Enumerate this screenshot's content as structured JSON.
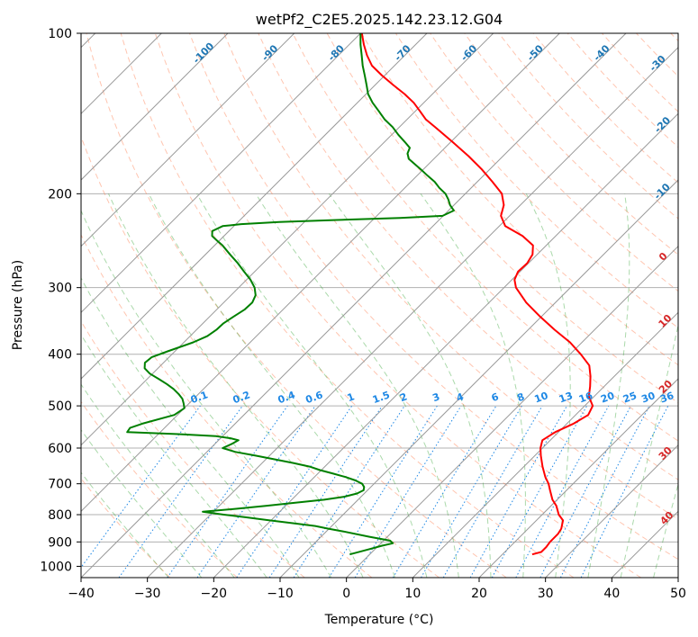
{
  "chart_data": {
    "type": "skew-t",
    "title": "wetPf2_C2E5.2025.142.23.12.G04",
    "xlabel": "Temperature (°C)",
    "ylabel": "Pressure (hPa)",
    "xlim": [
      -40,
      50
    ],
    "ylim": [
      1050,
      100
    ],
    "y_scale": "log",
    "grid": true,
    "x_ticks": [
      -40,
      -30,
      -20,
      -10,
      0,
      10,
      20,
      30,
      40,
      50
    ],
    "y_ticks": [
      100,
      200,
      300,
      400,
      500,
      600,
      700,
      800,
      900,
      1000
    ],
    "colors": {
      "temperature": "#ff0000",
      "dewpoint": "#008000",
      "isotherm": "#999999",
      "dry_adiabat": "#ff7f50",
      "moist_adiabat": "#2ca02c",
      "mixing_ratio": "#1e88e5",
      "isotherm_label": "#1f77b4",
      "moist_label": "#d62728"
    },
    "isotherm_labels": [
      "-100",
      "-90",
      "-80",
      "-70",
      "-60",
      "-50",
      "-40",
      "-30",
      "-20",
      "-10",
      "0",
      "10",
      "20",
      "30",
      "40"
    ],
    "mixing_ratio_labels": [
      "0.1",
      "0.2",
      "0.4",
      "0.6",
      "1",
      "1.5",
      "2",
      "3",
      "4",
      "6",
      "8",
      "10",
      "13",
      "16",
      "20",
      "25",
      "30",
      "36"
    ],
    "series": [
      {
        "key": "temperature",
        "p": [
          950,
          940,
          920,
          900,
          870,
          850,
          820,
          800,
          770,
          750,
          720,
          700,
          680,
          650,
          620,
          600,
          580,
          560,
          540,
          520,
          500,
          480,
          460,
          440,
          420,
          400,
          380,
          360,
          340,
          320,
          300,
          290,
          280,
          270,
          260,
          250,
          240,
          230,
          220,
          210,
          200,
          190,
          180,
          170,
          160,
          150,
          145,
          140,
          135,
          130,
          125,
          120,
          115,
          110,
          105,
          100
        ],
        "t": [
          24.5,
          25.5,
          25.5,
          25.3,
          25.3,
          25.0,
          24.0,
          22.5,
          20.8,
          19.3,
          17.5,
          16.3,
          14.8,
          12.8,
          10.9,
          9.7,
          8.8,
          9.5,
          11.0,
          11.9,
          11.2,
          9.2,
          7.9,
          6.4,
          4.6,
          1.6,
          -1.8,
          -6.0,
          -10.2,
          -14.4,
          -18.2,
          -19.6,
          -20.3,
          -20.2,
          -20.7,
          -22.0,
          -25.0,
          -29.1,
          -31.3,
          -32.5,
          -34.5,
          -37.7,
          -41.2,
          -45.2,
          -49.7,
          -54.6,
          -57.2,
          -59.3,
          -61.5,
          -64.2,
          -67.3,
          -70.4,
          -73.4,
          -75.7,
          -77.8,
          -79.8
        ]
      },
      {
        "key": "dewpoint",
        "p": [
          950,
          930,
          915,
          905,
          895,
          880,
          860,
          850,
          840,
          830,
          820,
          810,
          800,
          790,
          780,
          770,
          760,
          750,
          740,
          730,
          720,
          710,
          700,
          690,
          680,
          670,
          660,
          650,
          640,
          630,
          620,
          610,
          600,
          590,
          580,
          575,
          570,
          565,
          560,
          550,
          540,
          520,
          505,
          495,
          485,
          475,
          465,
          455,
          445,
          435,
          425,
          415,
          405,
          395,
          380,
          370,
          360,
          350,
          340,
          330,
          320,
          310,
          300,
          290,
          280,
          270,
          260,
          250,
          245,
          240,
          235,
          230,
          228,
          226,
          224,
          222,
          220,
          215,
          210,
          205,
          200,
          195,
          190,
          185,
          180,
          175,
          172,
          168,
          164,
          160,
          155,
          150,
          145,
          140,
          135,
          130,
          125,
          120,
          115,
          110,
          105,
          100
        ],
        "td": [
          -3.0,
          -1.0,
          0.5,
          1.8,
          1.0,
          -2.7,
          -7.5,
          -10.1,
          -12.5,
          -16.3,
          -20.2,
          -23.9,
          -28.0,
          -31.6,
          -27.0,
          -23.0,
          -19.0,
          -15.1,
          -12.5,
          -11.1,
          -10.6,
          -11.0,
          -11.8,
          -13.3,
          -15.3,
          -17.7,
          -20.2,
          -22.3,
          -25.3,
          -28.6,
          -32.1,
          -35.7,
          -38.2,
          -37.5,
          -37.0,
          -38.5,
          -41.0,
          -47.0,
          -55.0,
          -55.2,
          -54.0,
          -50.5,
          -50.0,
          -50.8,
          -51.7,
          -53.0,
          -54.5,
          -56.3,
          -58.3,
          -60.4,
          -62.0,
          -62.8,
          -62.6,
          -61.1,
          -58.6,
          -57.4,
          -57.0,
          -56.9,
          -56.4,
          -55.8,
          -55.7,
          -56.3,
          -57.6,
          -59.4,
          -61.6,
          -63.8,
          -66.3,
          -68.8,
          -70.3,
          -71.8,
          -72.5,
          -71.7,
          -69.2,
          -63.8,
          -55.4,
          -46.2,
          -40.1,
          -39.2,
          -40.6,
          -41.7,
          -43.0,
          -44.8,
          -46.4,
          -48.4,
          -50.4,
          -52.5,
          -53.8,
          -54.8,
          -55.3,
          -56.9,
          -59.0,
          -61.0,
          -63.4,
          -65.5,
          -67.7,
          -69.7,
          -71.3,
          -73.0,
          -74.8,
          -76.5,
          -78.3,
          -80.0
        ]
      }
    ]
  }
}
